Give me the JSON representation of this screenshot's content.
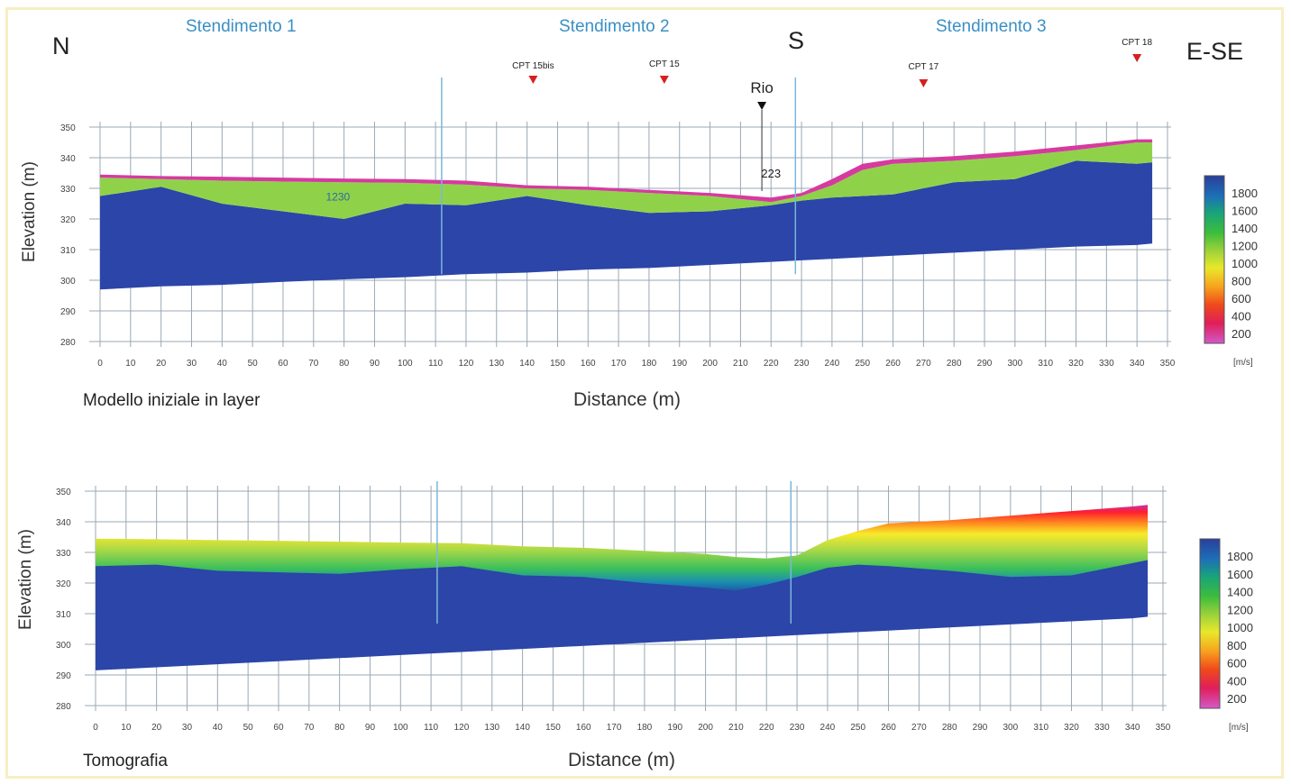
{
  "orientation": {
    "left": "N",
    "middle": "S",
    "right": "E-SE"
  },
  "sections": [
    "Stendimento 1",
    "Stendimento 2",
    "Stendimento 3"
  ],
  "markers": [
    {
      "label": "CPT 15bis",
      "x": 142,
      "color": "#d62020"
    },
    {
      "label": "CPT 15",
      "x": 185,
      "color": "#d62020"
    },
    {
      "label": "Rio",
      "x": 217,
      "color": "#111111"
    },
    {
      "label": "CPT 17",
      "x": 270,
      "color": "#d62020"
    },
    {
      "label": "CPT 18",
      "x": 340,
      "color": "#d62020"
    }
  ],
  "colorbar": {
    "ticks": [
      "1800",
      "1600",
      "1400",
      "1200",
      "1000",
      "800",
      "600",
      "400",
      "200"
    ],
    "unit": "[m/s]"
  },
  "chart_data": [
    {
      "type": "heatmap",
      "title": "Modello iniziale in layer",
      "xlabel": "Distance (m)",
      "ylabel": "Elevation (m)",
      "xlim": [
        0,
        350
      ],
      "ylim": [
        290,
        350
      ],
      "x_ticks": [
        0,
        10,
        20,
        30,
        40,
        50,
        60,
        70,
        80,
        90,
        100,
        110,
        120,
        130,
        140,
        150,
        160,
        170,
        180,
        190,
        200,
        210,
        220,
        230,
        240,
        250,
        260,
        270,
        280,
        290,
        300,
        310,
        320,
        330,
        340,
        350
      ],
      "y_ticks": [
        "350",
        "340",
        "330",
        "320",
        "310",
        "300",
        "290",
        "280"
      ],
      "annotations": [
        "1230",
        "223"
      ],
      "velocity_unit": "m/s",
      "profile_x": [
        0,
        20,
        40,
        60,
        80,
        100,
        120,
        140,
        160,
        180,
        200,
        220,
        230,
        240,
        250,
        260,
        280,
        300,
        320,
        340,
        345
      ],
      "surface": [
        334.5,
        334,
        333.8,
        333.5,
        333.2,
        333,
        332.5,
        331,
        330.5,
        329.5,
        328.5,
        327,
        328.5,
        333,
        338,
        339.5,
        340.5,
        342,
        344,
        346,
        346
      ],
      "layer1_base": [
        333.5,
        333,
        332.5,
        332.2,
        332,
        331.8,
        331.2,
        330,
        329.5,
        328.5,
        327.5,
        325.5,
        327.5,
        331,
        336,
        338,
        339,
        340.5,
        342.5,
        345,
        345
      ],
      "layer2_base": [
        327.5,
        330.5,
        325,
        322.5,
        320,
        325,
        324.5,
        327.5,
        324.5,
        322,
        322.5,
        324.5,
        326,
        327,
        327.5,
        328,
        332,
        333,
        339,
        338,
        338.5
      ],
      "bottom": [
        297,
        298,
        298.5,
        299.5,
        300.3,
        301,
        302,
        302.5,
        303.5,
        304,
        305,
        306,
        306.5,
        307,
        307.5,
        308,
        309,
        310,
        311,
        311.5,
        312
      ]
    },
    {
      "type": "heatmap",
      "title": "Tomografia",
      "xlabel": "Distance (m)",
      "ylabel": "Elevation (m)",
      "xlim": [
        0,
        350
      ],
      "ylim": [
        290,
        350
      ],
      "x_ticks": [
        0,
        10,
        20,
        30,
        40,
        50,
        60,
        70,
        80,
        90,
        100,
        110,
        120,
        130,
        140,
        150,
        160,
        170,
        180,
        190,
        200,
        210,
        220,
        230,
        240,
        250,
        260,
        270,
        280,
        290,
        300,
        310,
        320,
        330,
        340,
        350
      ],
      "y_ticks": [
        "350",
        "340",
        "330",
        "320",
        "310",
        "300",
        "290",
        "280"
      ],
      "velocity_unit": "m/s",
      "profile_x": [
        0,
        20,
        40,
        60,
        80,
        100,
        120,
        140,
        160,
        180,
        200,
        210,
        220,
        230,
        240,
        250,
        260,
        280,
        300,
        320,
        340,
        345
      ],
      "surface": [
        334.5,
        334.3,
        334,
        333.8,
        333.5,
        333.2,
        333,
        332,
        331.5,
        330.5,
        329.5,
        328.5,
        328,
        329,
        334,
        337,
        339.5,
        340.5,
        342,
        343.5,
        345,
        345.5
      ],
      "bedrock_top": [
        325.5,
        326,
        324,
        323.5,
        323,
        324.5,
        325.5,
        322.5,
        322,
        320,
        318.5,
        317.5,
        319.5,
        322,
        325,
        326,
        325.5,
        324,
        322,
        322.5,
        326.5,
        327.5
      ],
      "bottom": [
        291.5,
        292.5,
        293.5,
        294.5,
        295.5,
        296.5,
        297.5,
        298.5,
        299.5,
        300.5,
        301.5,
        302,
        302.5,
        303,
        303.5,
        304,
        304.5,
        305.5,
        306.5,
        307.5,
        308.5,
        309
      ]
    }
  ]
}
